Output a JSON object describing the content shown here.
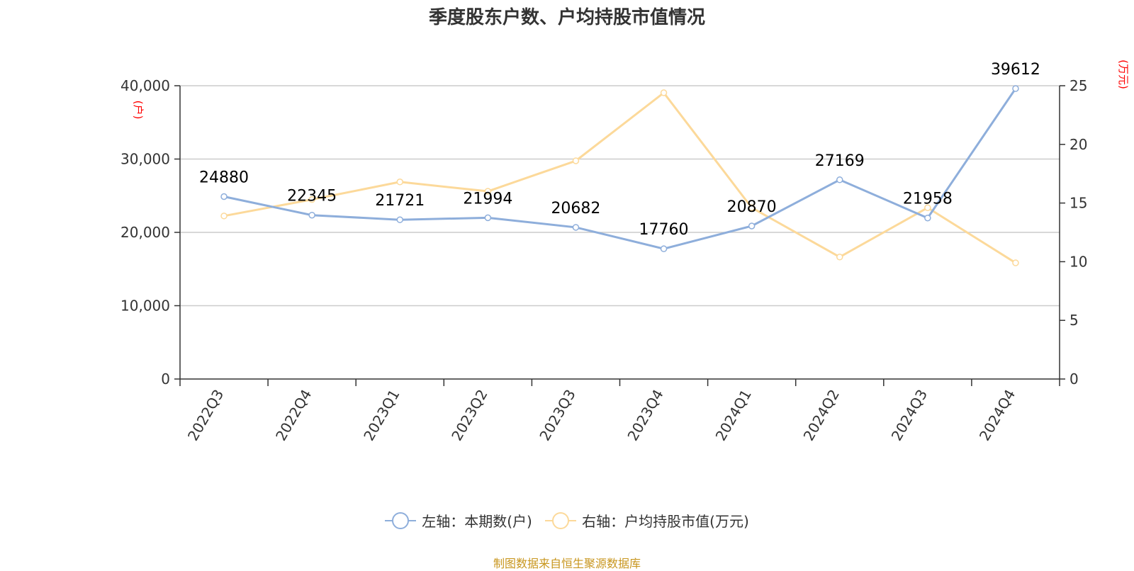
{
  "source": "制图数据来自恒生聚源数据库",
  "chart_data": {
    "type": "line",
    "title": "季度股东户数、户均持股市值情况",
    "categories": [
      "2022Q3",
      "2022Q4",
      "2023Q1",
      "2023Q2",
      "2023Q3",
      "2023Q4",
      "2024Q1",
      "2024Q2",
      "2024Q3",
      "2024Q4"
    ],
    "y_left": {
      "unit": "(户)",
      "min": 0,
      "max": 40000,
      "ticks": [
        "0",
        "10,000",
        "20,000",
        "30,000",
        "40,000"
      ]
    },
    "y_right": {
      "unit": "(万元)",
      "min": 0,
      "max": 25,
      "ticks": [
        "0",
        "5",
        "10",
        "15",
        "20",
        "25"
      ]
    },
    "grid": true,
    "legend_position": "bottom",
    "series": [
      {
        "name": "左轴：本期数(户)",
        "axis": "left",
        "color": "#8eaedb",
        "values": [
          24880,
          22345,
          21721,
          21994,
          20682,
          17760,
          20870,
          27169,
          21958,
          39612
        ],
        "labels": [
          "24880",
          "22345",
          "21721",
          "21994",
          "20682",
          "17760",
          "20870",
          "27169",
          "21958",
          "39612"
        ]
      },
      {
        "name": "右轴：户均持股市值(万元)",
        "axis": "right",
        "color": "#fcd99a",
        "values": [
          13.9,
          15.3,
          16.8,
          16.0,
          18.6,
          24.4,
          14.6,
          10.4,
          14.6,
          9.9
        ]
      }
    ]
  }
}
